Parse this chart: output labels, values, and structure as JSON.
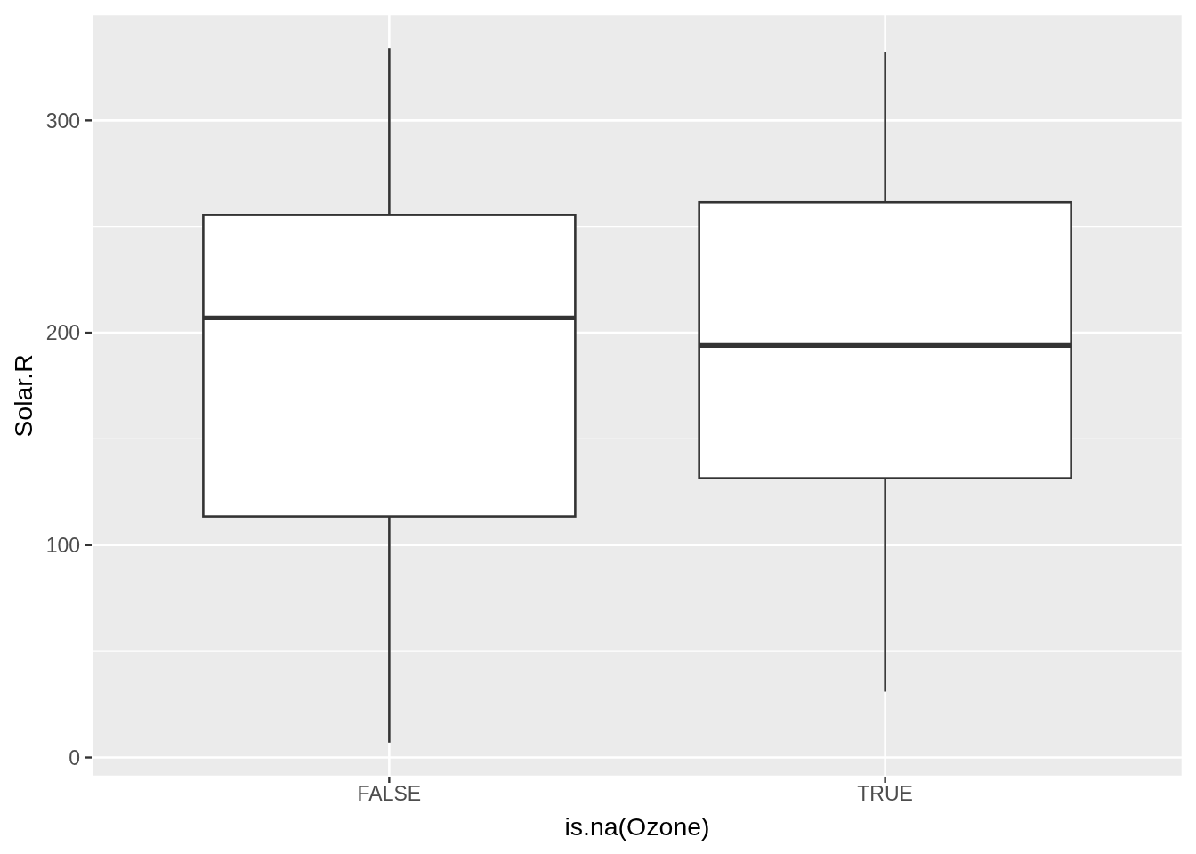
{
  "chart_data": {
    "type": "box",
    "xlabel": "is.na(Ozone)",
    "ylabel": "Solar.R",
    "categories": [
      "FALSE",
      "TRUE"
    ],
    "boxes": [
      {
        "low": 7,
        "q1": 113.5,
        "median": 207,
        "q3": 255.5,
        "high": 334
      },
      {
        "low": 31,
        "q1": 131.5,
        "median": 194,
        "q3": 261.5,
        "high": 332
      }
    ],
    "ylim": [
      -9,
      350
    ],
    "yticks": [
      0,
      100,
      200,
      300
    ],
    "grid": true
  }
}
